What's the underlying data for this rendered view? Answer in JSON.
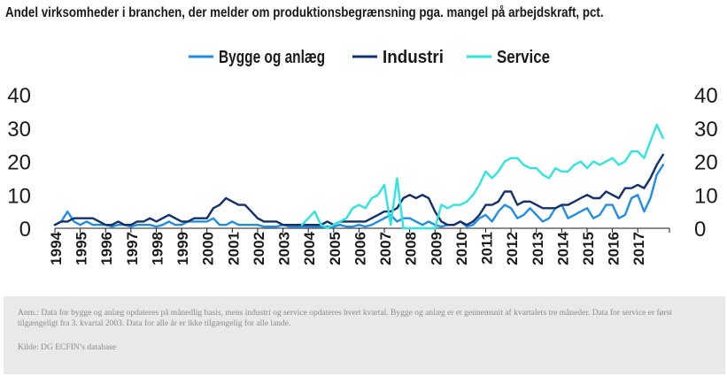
{
  "chart_data": {
    "type": "line",
    "title": "Andel virksomheder i branchen, der melder om produktionsbegrænsning pga. mangel på arbejdskraft, pct.",
    "ylim": [
      0,
      40
    ],
    "yticks": [
      0,
      10,
      20,
      30,
      40
    ],
    "xlim": [
      1994.0,
      2018.25
    ],
    "xticklabels": [
      "1994",
      "1995",
      "1996",
      "1997",
      "1998",
      "1999",
      "2000",
      "2001",
      "2002",
      "2003",
      "2004",
      "2005",
      "2006",
      "2007",
      "2008",
      "2009",
      "2010",
      "2011",
      "2012",
      "2013",
      "2014",
      "2015",
      "2016",
      "2017"
    ],
    "legend_position": "top-center",
    "grid": false,
    "dual_y_axis": true,
    "series": [
      {
        "name": "Bygge og anlæg",
        "color": "#1f8ee3",
        "points": [
          [
            1994.0,
            1
          ],
          [
            1994.25,
            2
          ],
          [
            1994.5,
            5
          ],
          [
            1994.75,
            2
          ],
          [
            1995.0,
            1
          ],
          [
            1995.25,
            2
          ],
          [
            1995.5,
            1
          ],
          [
            1995.75,
            1
          ],
          [
            1996.0,
            1
          ],
          [
            1996.25,
            0.5
          ],
          [
            1996.5,
            1
          ],
          [
            1996.75,
            1
          ],
          [
            1997.0,
            0.5
          ],
          [
            1997.25,
            1
          ],
          [
            1997.5,
            1
          ],
          [
            1997.75,
            1
          ],
          [
            1998.0,
            0.5
          ],
          [
            1998.25,
            1
          ],
          [
            1998.5,
            2
          ],
          [
            1998.75,
            1
          ],
          [
            1999.0,
            1
          ],
          [
            1999.25,
            2
          ],
          [
            1999.5,
            2
          ],
          [
            1999.75,
            2
          ],
          [
            2000.0,
            2
          ],
          [
            2000.25,
            3
          ],
          [
            2000.5,
            1
          ],
          [
            2000.75,
            1
          ],
          [
            2001.0,
            2
          ],
          [
            2001.25,
            1
          ],
          [
            2001.5,
            1
          ],
          [
            2001.75,
            1
          ],
          [
            2002.0,
            1
          ],
          [
            2002.25,
            0.5
          ],
          [
            2002.5,
            0.5
          ],
          [
            2002.75,
            0.5
          ],
          [
            2003.0,
            1
          ],
          [
            2003.25,
            0.5
          ],
          [
            2003.5,
            0.5
          ],
          [
            2003.75,
            0.5
          ],
          [
            2004.0,
            0.5
          ],
          [
            2004.25,
            0.5
          ],
          [
            2004.5,
            0.5
          ],
          [
            2004.75,
            0.5
          ],
          [
            2005.0,
            0.5
          ],
          [
            2005.25,
            1
          ],
          [
            2005.5,
            0.5
          ],
          [
            2005.75,
            0.5
          ],
          [
            2006.0,
            1
          ],
          [
            2006.25,
            0.5
          ],
          [
            2006.5,
            1
          ],
          [
            2006.75,
            2
          ],
          [
            2007.0,
            3
          ],
          [
            2007.25,
            4
          ],
          [
            2007.5,
            2
          ],
          [
            2007.75,
            3
          ],
          [
            2008.0,
            3
          ],
          [
            2008.25,
            2
          ],
          [
            2008.5,
            1
          ],
          [
            2008.75,
            2
          ],
          [
            2009.0,
            1
          ],
          [
            2009.25,
            0.5
          ],
          [
            2009.5,
            1
          ],
          [
            2009.75,
            1
          ],
          [
            2010.0,
            2
          ],
          [
            2010.25,
            0.5
          ],
          [
            2010.5,
            1
          ],
          [
            2010.75,
            3
          ],
          [
            2011.0,
            4
          ],
          [
            2011.25,
            2
          ],
          [
            2011.5,
            5
          ],
          [
            2011.75,
            7
          ],
          [
            2012.0,
            6
          ],
          [
            2012.25,
            3
          ],
          [
            2012.5,
            4
          ],
          [
            2012.75,
            6
          ],
          [
            2013.0,
            4
          ],
          [
            2013.25,
            2
          ],
          [
            2013.5,
            3
          ],
          [
            2013.75,
            6
          ],
          [
            2014.0,
            7
          ],
          [
            2014.25,
            3
          ],
          [
            2014.5,
            4
          ],
          [
            2014.75,
            5
          ],
          [
            2015.0,
            6
          ],
          [
            2015.25,
            3
          ],
          [
            2015.5,
            4
          ],
          [
            2015.75,
            7
          ],
          [
            2016.0,
            7
          ],
          [
            2016.25,
            3
          ],
          [
            2016.5,
            4
          ],
          [
            2016.75,
            9
          ],
          [
            2017.0,
            10
          ],
          [
            2017.25,
            5
          ],
          [
            2017.5,
            9
          ],
          [
            2017.75,
            16
          ],
          [
            2018.0,
            19
          ]
        ]
      },
      {
        "name": "Industri",
        "color": "#132f6e",
        "points": [
          [
            1994.0,
            1
          ],
          [
            1994.25,
            2
          ],
          [
            1994.5,
            2
          ],
          [
            1994.75,
            3
          ],
          [
            1995.0,
            3
          ],
          [
            1995.25,
            3
          ],
          [
            1995.5,
            3
          ],
          [
            1995.75,
            2
          ],
          [
            1996.0,
            1
          ],
          [
            1996.25,
            1
          ],
          [
            1996.5,
            2
          ],
          [
            1996.75,
            1
          ],
          [
            1997.0,
            1
          ],
          [
            1997.25,
            2
          ],
          [
            1997.5,
            2
          ],
          [
            1997.75,
            3
          ],
          [
            1998.0,
            2
          ],
          [
            1998.25,
            3
          ],
          [
            1998.5,
            4
          ],
          [
            1998.75,
            3
          ],
          [
            1999.0,
            2
          ],
          [
            1999.25,
            2
          ],
          [
            1999.5,
            3
          ],
          [
            1999.75,
            3
          ],
          [
            2000.0,
            3
          ],
          [
            2000.25,
            6
          ],
          [
            2000.5,
            7
          ],
          [
            2000.75,
            9
          ],
          [
            2001.0,
            8
          ],
          [
            2001.25,
            7
          ],
          [
            2001.5,
            7
          ],
          [
            2001.75,
            5
          ],
          [
            2002.0,
            3
          ],
          [
            2002.25,
            2
          ],
          [
            2002.5,
            2
          ],
          [
            2002.75,
            2
          ],
          [
            2003.0,
            1
          ],
          [
            2003.25,
            1
          ],
          [
            2003.5,
            1
          ],
          [
            2003.75,
            1
          ],
          [
            2004.0,
            1
          ],
          [
            2004.25,
            1
          ],
          [
            2004.5,
            1
          ],
          [
            2004.75,
            2
          ],
          [
            2005.0,
            1
          ],
          [
            2005.25,
            2
          ],
          [
            2005.5,
            2
          ],
          [
            2005.75,
            2
          ],
          [
            2006.0,
            2
          ],
          [
            2006.25,
            2
          ],
          [
            2006.5,
            3
          ],
          [
            2006.75,
            4
          ],
          [
            2007.0,
            5
          ],
          [
            2007.25,
            5
          ],
          [
            2007.5,
            6
          ],
          [
            2007.75,
            9
          ],
          [
            2008.0,
            10
          ],
          [
            2008.25,
            9
          ],
          [
            2008.5,
            10
          ],
          [
            2008.75,
            9
          ],
          [
            2009.0,
            5
          ],
          [
            2009.25,
            2
          ],
          [
            2009.5,
            1
          ],
          [
            2009.75,
            1
          ],
          [
            2010.0,
            2
          ],
          [
            2010.25,
            1
          ],
          [
            2010.5,
            2
          ],
          [
            2010.75,
            4
          ],
          [
            2011.0,
            7
          ],
          [
            2011.25,
            7
          ],
          [
            2011.5,
            8
          ],
          [
            2011.75,
            11
          ],
          [
            2012.0,
            11
          ],
          [
            2012.25,
            7
          ],
          [
            2012.5,
            8
          ],
          [
            2012.75,
            8
          ],
          [
            2013.0,
            7
          ],
          [
            2013.25,
            6
          ],
          [
            2013.5,
            6
          ],
          [
            2013.75,
            6
          ],
          [
            2014.0,
            7
          ],
          [
            2014.25,
            7
          ],
          [
            2014.5,
            8
          ],
          [
            2014.75,
            9
          ],
          [
            2015.0,
            10
          ],
          [
            2015.25,
            9
          ],
          [
            2015.5,
            9
          ],
          [
            2015.75,
            11
          ],
          [
            2016.0,
            10
          ],
          [
            2016.25,
            9
          ],
          [
            2016.5,
            12
          ],
          [
            2016.75,
            12
          ],
          [
            2017.0,
            13
          ],
          [
            2017.25,
            12
          ],
          [
            2017.5,
            15
          ],
          [
            2017.75,
            19
          ],
          [
            2018.0,
            22
          ]
        ]
      },
      {
        "name": "Service",
        "color": "#2ee6df",
        "points": [
          [
            2003.75,
            1
          ],
          [
            2004.0,
            3
          ],
          [
            2004.25,
            5
          ],
          [
            2004.5,
            1
          ],
          [
            2004.75,
            0
          ],
          [
            2005.0,
            1
          ],
          [
            2005.25,
            2
          ],
          [
            2005.5,
            3
          ],
          [
            2005.75,
            6
          ],
          [
            2006.0,
            7
          ],
          [
            2006.25,
            6
          ],
          [
            2006.5,
            9
          ],
          [
            2006.75,
            10
          ],
          [
            2007.0,
            13
          ],
          [
            2007.25,
            1
          ],
          [
            2007.5,
            15
          ],
          [
            2007.75,
            0
          ],
          [
            2008.0,
            0
          ],
          [
            2008.25,
            0
          ],
          [
            2008.5,
            0
          ],
          [
            2008.75,
            0
          ],
          [
            2009.0,
            0
          ],
          [
            2009.25,
            7
          ],
          [
            2009.5,
            6
          ],
          [
            2009.75,
            7
          ],
          [
            2010.0,
            7
          ],
          [
            2010.25,
            8
          ],
          [
            2010.5,
            10
          ],
          [
            2010.75,
            13
          ],
          [
            2011.0,
            17
          ],
          [
            2011.25,
            15
          ],
          [
            2011.5,
            17
          ],
          [
            2011.75,
            20
          ],
          [
            2012.0,
            21
          ],
          [
            2012.25,
            21
          ],
          [
            2012.5,
            19
          ],
          [
            2012.75,
            18
          ],
          [
            2013.0,
            18
          ],
          [
            2013.25,
            16
          ],
          [
            2013.5,
            15
          ],
          [
            2013.75,
            18
          ],
          [
            2014.0,
            17
          ],
          [
            2014.25,
            17
          ],
          [
            2014.5,
            19
          ],
          [
            2014.75,
            20
          ],
          [
            2015.0,
            18
          ],
          [
            2015.25,
            20
          ],
          [
            2015.5,
            19
          ],
          [
            2015.75,
            20
          ],
          [
            2016.0,
            21
          ],
          [
            2016.25,
            19
          ],
          [
            2016.5,
            20
          ],
          [
            2016.75,
            23
          ],
          [
            2017.0,
            23
          ],
          [
            2017.25,
            21
          ],
          [
            2017.5,
            26
          ],
          [
            2017.75,
            31
          ],
          [
            2018.0,
            27
          ]
        ]
      }
    ]
  },
  "footer": {
    "note": "Anm.: Data for bygge og anlæg opdateres på månedlig basis, mens industri og service opdateres hvert kvartal. Bygge og anlæg er et gennemsnit af kvartalets tre måneder. Data for service er først tilgængeligt fra 3. kvartal 2003. Data for alle år er ikke tilgængelig for alle lande.",
    "source": "Kilde: DG ECFIN’s database"
  }
}
